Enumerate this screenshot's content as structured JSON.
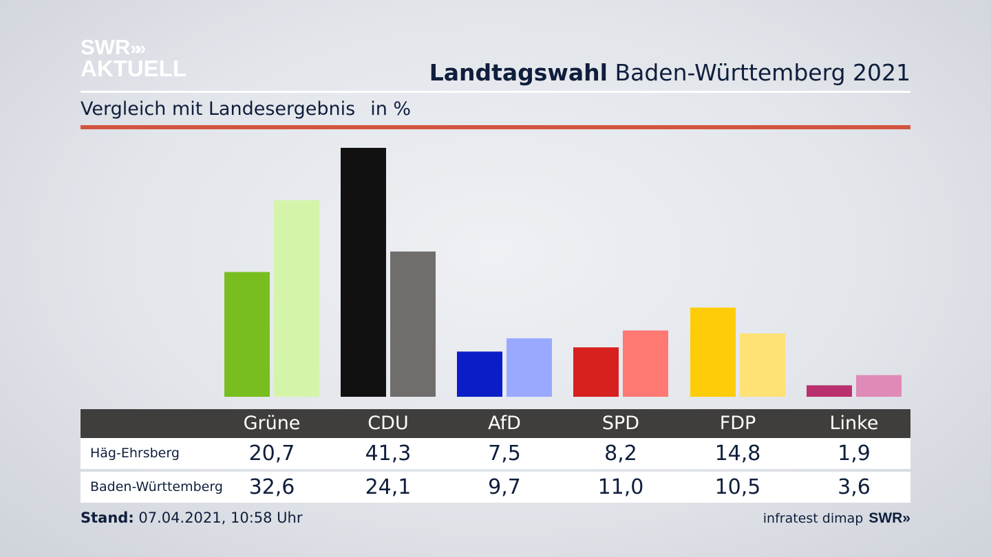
{
  "logo": {
    "line1": "SWR",
    "chevrons": "»",
    "line2": "AKTUELL"
  },
  "header": {
    "title_bold": "Landtagswahl",
    "title_rest": " Baden-Württemberg 2021"
  },
  "subtitle": {
    "text": "Vergleich mit Landesergebnis",
    "unit": "in %"
  },
  "colors": {
    "accent_red": "#d2553f",
    "table_header": "#3f3e3c",
    "text": "#0f1e3c"
  },
  "chart_data": {
    "type": "bar",
    "title": "Landtagswahl Baden-Württemberg 2021",
    "subtitle": "Vergleich mit Landesergebnis in %",
    "categories": [
      "Grüne",
      "CDU",
      "AfD",
      "SPD",
      "FDP",
      "Linke"
    ],
    "series": [
      {
        "name": "Häg-Ehrsberg",
        "values": [
          20.7,
          41.3,
          7.5,
          8.2,
          14.8,
          1.9
        ],
        "labels": [
          "20,7",
          "41,3",
          "7,5",
          "8,2",
          "14,8",
          "1,9"
        ],
        "colors": [
          "#78be1e",
          "#111111",
          "#0a1ec8",
          "#d7211e",
          "#ffcc0a",
          "#b9306e"
        ]
      },
      {
        "name": "Baden-Württemberg",
        "values": [
          32.6,
          24.1,
          9.7,
          11.0,
          10.5,
          3.6
        ],
        "labels": [
          "32,6",
          "24,1",
          "9,7",
          "11,0",
          "10,5",
          "3,6"
        ],
        "colors": [
          "#d4f5a9",
          "#706e6c",
          "#9aa9ff",
          "#ff7871",
          "#ffe176",
          "#df8ab7"
        ]
      }
    ],
    "ylim": [
      0,
      41.3
    ],
    "grid": false,
    "legend": "table-below"
  },
  "footer": {
    "stand_label": "Stand:",
    "stand_value": " 07.04.2021, 10:58 Uhr",
    "source": "infratest dimap",
    "brand": "SWR»"
  }
}
